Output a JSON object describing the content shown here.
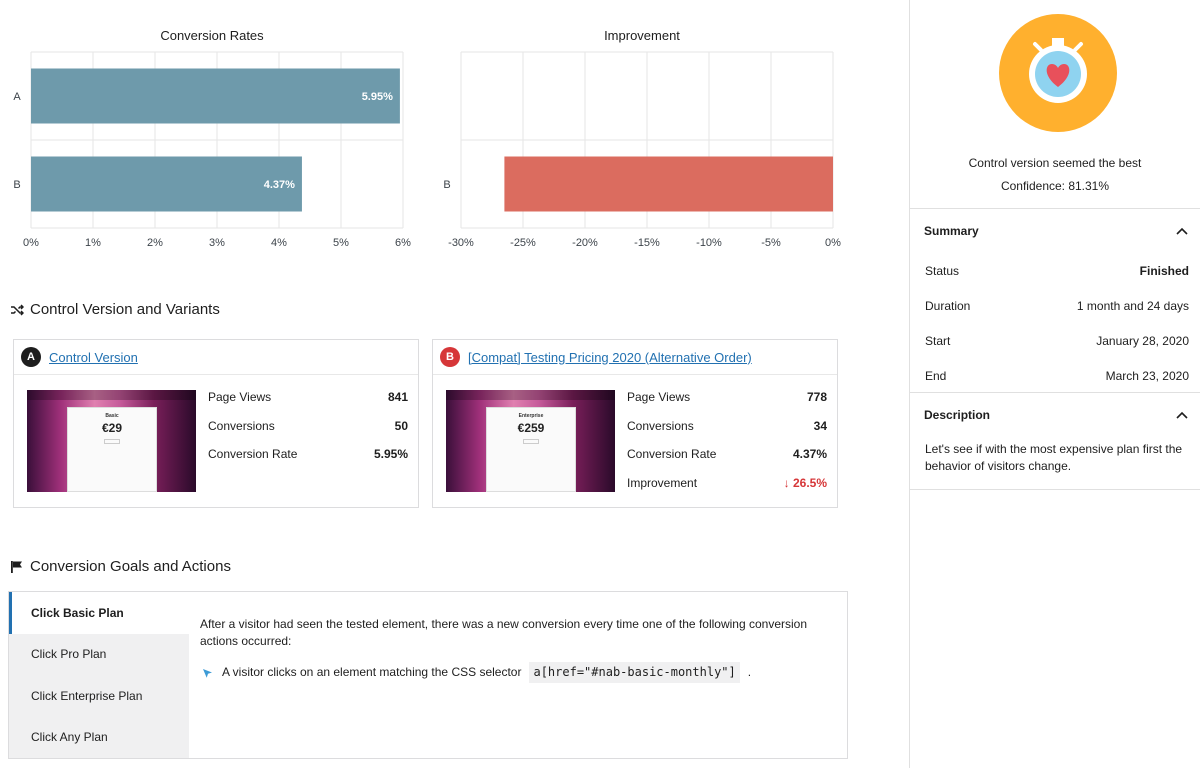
{
  "chart_data": [
    {
      "type": "bar",
      "orientation": "horizontal",
      "title": "Conversion Rates",
      "categories": [
        "A",
        "B"
      ],
      "values": [
        5.95,
        4.37
      ],
      "data_labels": [
        "5.95%",
        "4.37%"
      ],
      "xlim": [
        0,
        6
      ],
      "xticks": [
        "0%",
        "1%",
        "2%",
        "3%",
        "4%",
        "5%",
        "6%"
      ],
      "color": "#6e9aab",
      "grid": true
    },
    {
      "type": "bar",
      "orientation": "horizontal",
      "title": "Improvement",
      "categories": [
        "B"
      ],
      "values": [
        -26.5
      ],
      "xlim": [
        -30,
        0
      ],
      "xticks": [
        "-30%",
        "-25%",
        "-20%",
        "-15%",
        "-10%",
        "-5%",
        "0%"
      ],
      "color": "#db6c5f",
      "grid": true
    }
  ],
  "sections": {
    "variants_title": "Control Version and Variants",
    "goals_title": "Conversion Goals and Actions"
  },
  "variants": [
    {
      "badge": "A",
      "name": "Control Version",
      "thumb_plan": "Basic",
      "thumb_price": "€29",
      "stats": [
        {
          "label": "Page Views",
          "value": "841"
        },
        {
          "label": "Conversions",
          "value": "50"
        },
        {
          "label": "Conversion Rate",
          "value": "5.95%"
        }
      ]
    },
    {
      "badge": "B",
      "name": "[Compat] Testing Pricing 2020 (Alternative Order)",
      "thumb_plan": "Enterprise",
      "thumb_price": "€259",
      "stats": [
        {
          "label": "Page Views",
          "value": "778"
        },
        {
          "label": "Conversions",
          "value": "34"
        },
        {
          "label": "Conversion Rate",
          "value": "4.37%"
        },
        {
          "label": "Improvement",
          "value": "↓ 26.5%"
        }
      ]
    }
  ],
  "goals": {
    "tabs": [
      "Click Basic Plan",
      "Click Pro Plan",
      "Click Enterprise Plan",
      "Click Any Plan"
    ],
    "active_tab": 0,
    "description": "After a visitor had seen the tested element, there was a new conversion every time one of the following conversion actions occurred:",
    "action_text": "A visitor clicks on an element matching the CSS selector",
    "action_selector": "a[href=\"#nab-basic-monthly\"]",
    "action_end": "."
  },
  "sidebar": {
    "result": "Control version seemed the best",
    "confidence": "Confidence: 81.31%",
    "summary": {
      "title": "Summary",
      "rows": [
        {
          "label": "Status",
          "value": "Finished"
        },
        {
          "label": "Duration",
          "value": "1 month and 24 days"
        },
        {
          "label": "Start",
          "value": "January 28, 2020"
        },
        {
          "label": "End",
          "value": "March 23, 2020"
        }
      ]
    },
    "description": {
      "title": "Description",
      "text": "Let's see if with the most expensive plan first the behavior of visitors change."
    }
  },
  "colors": {
    "accent": "#2271b1",
    "danger": "#d63638",
    "timer_bg": "#ffb02e",
    "timer_face": "#8fd3f0",
    "heart": "#e8505b"
  }
}
